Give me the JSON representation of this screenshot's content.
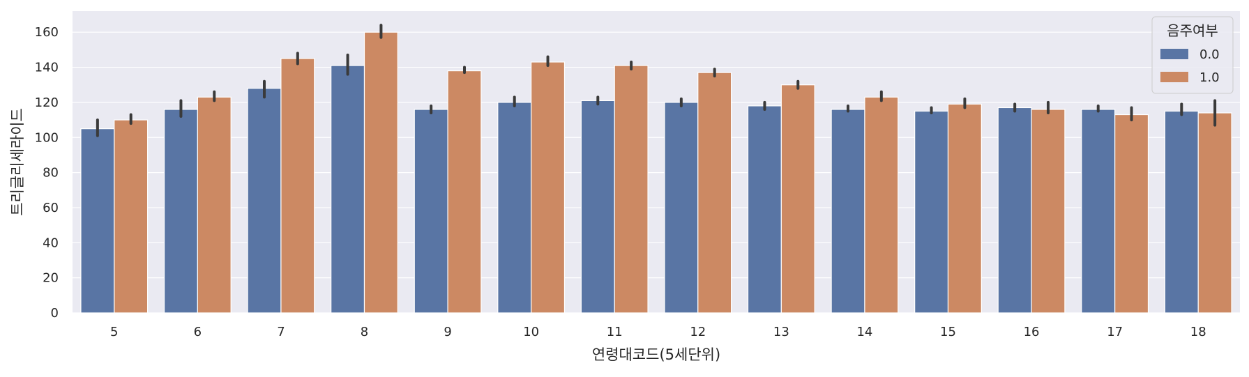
{
  "chart_data": {
    "type": "bar",
    "title": "",
    "xlabel": "연령대코드(5세단위)",
    "ylabel": "트리글리세라이드",
    "categories": [
      "5",
      "6",
      "7",
      "8",
      "9",
      "10",
      "11",
      "12",
      "13",
      "14",
      "15",
      "16",
      "17",
      "18"
    ],
    "ylim": [
      0,
      172
    ],
    "yticks": [
      0,
      20,
      40,
      60,
      80,
      100,
      120,
      140,
      160
    ],
    "grid": true,
    "legend": {
      "title": "음주여부",
      "position": "top-right"
    },
    "colors": {
      "background": "#eaeaf2",
      "grid": "#ffffff",
      "errorbar": "#3a3a3a"
    },
    "series": [
      {
        "name": "0.0",
        "color": "#5975a4",
        "values": [
          105,
          116,
          128,
          141,
          116,
          120,
          121,
          120,
          118,
          116,
          115,
          117,
          116,
          115
        ],
        "ci": [
          [
            101,
            110
          ],
          [
            112,
            121
          ],
          [
            123,
            132
          ],
          [
            136,
            147
          ],
          [
            114,
            118
          ],
          [
            118,
            123
          ],
          [
            119,
            123
          ],
          [
            118,
            122
          ],
          [
            116,
            120
          ],
          [
            115,
            118
          ],
          [
            114,
            117
          ],
          [
            115,
            119
          ],
          [
            115,
            118
          ],
          [
            113,
            119
          ]
        ]
      },
      {
        "name": "1.0",
        "color": "#cc8963",
        "values": [
          110,
          123,
          145,
          160,
          138,
          143,
          141,
          137,
          130,
          123,
          119,
          116,
          113,
          114
        ],
        "ci": [
          [
            108,
            113
          ],
          [
            121,
            126
          ],
          [
            142,
            148
          ],
          [
            157,
            164
          ],
          [
            137,
            140
          ],
          [
            141,
            146
          ],
          [
            139,
            143
          ],
          [
            135,
            139
          ],
          [
            128,
            132
          ],
          [
            121,
            126
          ],
          [
            117,
            122
          ],
          [
            114,
            120
          ],
          [
            110,
            117
          ],
          [
            107,
            121
          ]
        ]
      }
    ]
  }
}
